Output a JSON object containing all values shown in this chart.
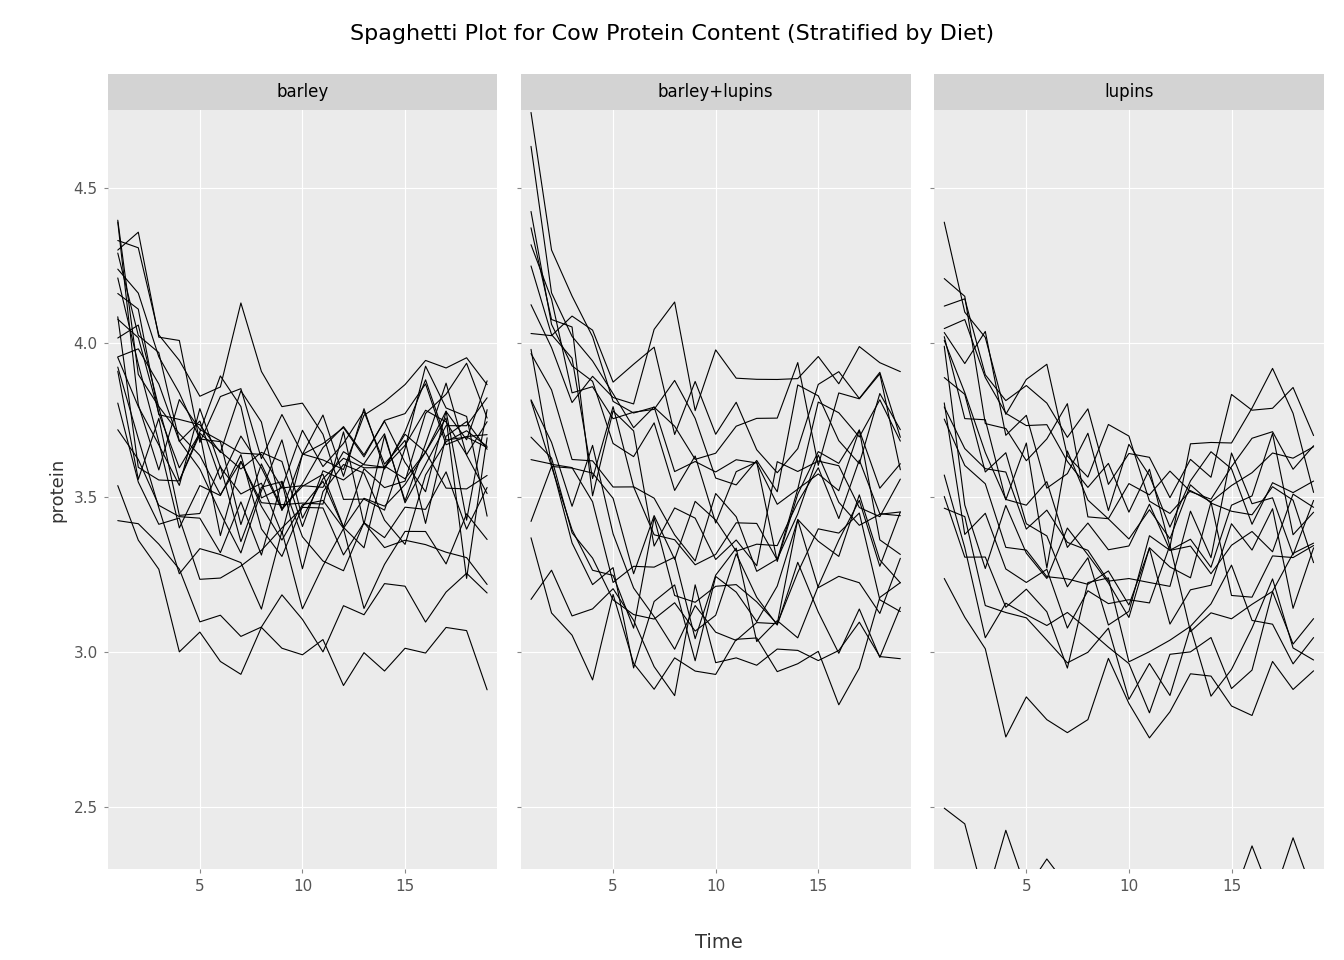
{
  "title": "Spaghetti Plot for Cow Protein Content (Stratified by Diet)",
  "xlabel": "Time",
  "ylabel": "protein",
  "diets": [
    "barley",
    "barley+lupins",
    "lupins"
  ],
  "ylim": [
    2.3,
    4.75
  ],
  "xlim": [
    0.5,
    19.5
  ],
  "xticks": [
    5,
    10,
    15
  ],
  "yticks": [
    2.5,
    3.0,
    3.5,
    4.0,
    4.5
  ],
  "bg_color": "#EBEBEB",
  "panel_bg": "#EBEBEB",
  "outer_bg": "white",
  "line_color": "black",
  "line_alpha": 1.0,
  "line_width": 0.8,
  "title_fontsize": 16,
  "label_fontsize": 13,
  "tick_fontsize": 11,
  "strip_fontsize": 12,
  "strip_bg": "#D3D3D3",
  "grid_color": "white",
  "barley_cows": [
    [
      4.28,
      4.32,
      3.96,
      3.79,
      3.85,
      3.88,
      3.97,
      3.83,
      3.84,
      3.75,
      3.75,
      3.54,
      3.47,
      3.65,
      3.83,
      3.98,
      3.89,
      3.73,
      3.53
    ],
    [
      4.44,
      4.21,
      4.04,
      4.0,
      3.82,
      3.88,
      3.84,
      3.74,
      3.73,
      3.7,
      3.65,
      3.65,
      3.58,
      3.81,
      3.97,
      3.86,
      4.04,
      3.93,
      4.06
    ],
    [
      4.37,
      4.14,
      3.88,
      3.82,
      3.7,
      3.71,
      3.56,
      3.68,
      3.51,
      3.43,
      3.54,
      3.58,
      3.56,
      3.57,
      3.62,
      3.71,
      3.73,
      3.84,
      3.84
    ],
    [
      4.32,
      3.99,
      3.87,
      3.73,
      3.61,
      3.56,
      3.44,
      3.44,
      3.55,
      3.44,
      3.46,
      3.59,
      3.66,
      3.56,
      3.55,
      3.65,
      3.6,
      3.5,
      3.61
    ],
    [
      4.2,
      3.96,
      3.67,
      3.6,
      3.56,
      3.47,
      3.49,
      3.45,
      3.39,
      3.52,
      3.46,
      3.37,
      3.39,
      3.55,
      3.55,
      3.55,
      3.6,
      3.56,
      3.61
    ],
    [
      4.1,
      3.95,
      3.84,
      3.68,
      3.77,
      3.7,
      3.74,
      3.63,
      3.54,
      3.56,
      3.62,
      3.54,
      3.62,
      3.72,
      3.62,
      3.71,
      3.78,
      3.68,
      3.63
    ],
    [
      3.94,
      3.66,
      3.47,
      3.37,
      3.22,
      3.24,
      3.21,
      3.23,
      3.25,
      3.28,
      3.22,
      3.18,
      3.24,
      3.34,
      3.38,
      3.44,
      3.44,
      3.44,
      3.47
    ],
    [
      3.86,
      3.65,
      3.6,
      3.52,
      3.48,
      3.52,
      3.48,
      3.51,
      3.42,
      3.43,
      3.5,
      3.58,
      3.5,
      3.55,
      3.48,
      3.52,
      3.65,
      3.69,
      3.63
    ],
    [
      4.02,
      3.77,
      3.64,
      3.61,
      3.6,
      3.55,
      3.63,
      3.48,
      3.48,
      3.56,
      3.65,
      3.65,
      3.69,
      3.55,
      3.63,
      3.69,
      3.71,
      3.77,
      3.75
    ],
    [
      3.8,
      3.63,
      3.44,
      3.41,
      3.35,
      3.32,
      3.34,
      3.34,
      3.28,
      3.31,
      3.38,
      3.37,
      3.37,
      3.36,
      3.29,
      3.3,
      3.33,
      3.39,
      3.37
    ],
    [
      4.12,
      3.93,
      3.75,
      3.72,
      3.69,
      3.61,
      3.68,
      3.63,
      3.61,
      3.52,
      3.55,
      3.5,
      3.5,
      3.6,
      3.62,
      3.7,
      3.68,
      3.68,
      3.77
    ],
    [
      4.01,
      3.84,
      3.68,
      3.61,
      3.57,
      3.54,
      3.54,
      3.56,
      3.5,
      3.53,
      3.47,
      3.48,
      3.6,
      3.63,
      3.65,
      3.72,
      3.76,
      3.63,
      3.62
    ],
    [
      4.23,
      4.04,
      3.84,
      3.73,
      3.73,
      3.71,
      3.63,
      3.68,
      3.66,
      3.62,
      3.74,
      3.64,
      3.71,
      3.76,
      3.72,
      3.78,
      3.79,
      3.73,
      3.75
    ],
    [
      4.08,
      3.88,
      3.75,
      3.68,
      3.62,
      3.68,
      3.69,
      3.65,
      3.58,
      3.59,
      3.67,
      3.63,
      3.7,
      3.7,
      3.69,
      3.74,
      3.8,
      3.77,
      3.78
    ],
    [
      3.92,
      3.74,
      3.6,
      3.54,
      3.56,
      3.52,
      3.5,
      3.47,
      3.46,
      3.43,
      3.47,
      3.46,
      3.49,
      3.51,
      3.53,
      3.58,
      3.62,
      3.55,
      3.57
    ],
    [
      3.62,
      3.43,
      3.29,
      3.24,
      3.16,
      3.14,
      3.1,
      3.14,
      3.1,
      3.07,
      3.07,
      3.06,
      3.09,
      3.14,
      3.15,
      3.18,
      3.25,
      3.18,
      3.13
    ],
    [
      3.54,
      3.35,
      3.14,
      3.06,
      3.01,
      2.99,
      2.95,
      2.97,
      2.93,
      2.91,
      2.91,
      2.89,
      2.93,
      2.97,
      2.98,
      3.01,
      3.07,
      3.01,
      2.96
    ],
    [
      4.18,
      3.9,
      3.71,
      3.7,
      3.64,
      3.62,
      3.58,
      3.64,
      3.62,
      3.53,
      3.6,
      3.55,
      3.62,
      3.68,
      3.7,
      3.74,
      3.8,
      3.72,
      3.72
    ],
    [
      3.78,
      3.6,
      3.46,
      3.41,
      3.38,
      3.38,
      3.35,
      3.35,
      3.37,
      3.32,
      3.38,
      3.33,
      3.42,
      3.47,
      3.47,
      3.49,
      3.55,
      3.48,
      3.48
    ]
  ],
  "barleylupins_cows": [
    [
      4.59,
      4.31,
      4.11,
      3.95,
      3.85,
      3.75,
      3.79,
      3.72,
      3.7,
      3.64,
      3.68,
      3.61,
      3.66,
      3.72,
      3.68,
      3.75,
      3.8,
      3.68,
      3.67
    ],
    [
      4.4,
      4.2,
      4.05,
      3.91,
      3.83,
      3.76,
      3.75,
      3.69,
      3.66,
      3.62,
      3.63,
      3.57,
      3.65,
      3.68,
      3.71,
      3.73,
      3.78,
      3.7,
      3.73
    ],
    [
      4.51,
      4.32,
      4.08,
      3.94,
      3.83,
      3.77,
      3.73,
      3.69,
      3.63,
      3.57,
      3.57,
      3.54,
      3.59,
      3.68,
      3.68,
      3.74,
      3.77,
      3.66,
      3.67
    ],
    [
      3.86,
      3.6,
      3.39,
      3.31,
      3.25,
      3.18,
      3.21,
      3.17,
      3.14,
      3.18,
      3.23,
      3.21,
      3.22,
      3.25,
      3.24,
      3.29,
      3.34,
      3.27,
      3.29
    ],
    [
      3.95,
      3.77,
      3.6,
      3.54,
      3.5,
      3.46,
      3.45,
      3.43,
      3.42,
      3.39,
      3.42,
      3.4,
      3.45,
      3.49,
      3.5,
      3.53,
      3.57,
      3.5,
      3.52
    ],
    [
      3.38,
      3.23,
      3.11,
      3.03,
      2.99,
      2.96,
      2.95,
      2.96,
      2.95,
      2.95,
      2.98,
      2.97,
      2.99,
      3.02,
      3.03,
      3.06,
      3.1,
      3.04,
      3.06
    ],
    [
      3.84,
      3.62,
      3.44,
      3.36,
      3.27,
      3.22,
      3.21,
      3.17,
      3.13,
      3.14,
      3.18,
      3.16,
      3.2,
      3.26,
      3.27,
      3.31,
      3.36,
      3.29,
      3.31
    ],
    [
      3.97,
      3.93,
      3.91,
      3.91,
      3.91,
      3.94,
      3.95,
      3.94,
      3.92,
      3.92,
      3.95,
      3.93,
      3.94,
      3.97,
      3.95,
      3.95,
      3.96,
      3.94,
      3.93
    ],
    [
      4.12,
      4.08,
      4.01,
      3.99,
      3.97,
      3.92,
      3.91,
      3.87,
      3.82,
      3.77,
      3.75,
      3.73,
      3.76,
      3.82,
      3.86,
      3.88,
      3.91,
      3.84,
      3.86
    ],
    [
      4.43,
      4.18,
      3.99,
      3.87,
      3.76,
      3.67,
      3.64,
      3.58,
      3.55,
      3.53,
      3.53,
      3.47,
      3.54,
      3.59,
      3.59,
      3.63,
      3.68,
      3.59,
      3.6
    ],
    [
      3.71,
      3.51,
      3.36,
      3.27,
      3.21,
      3.17,
      3.15,
      3.12,
      3.11,
      3.09,
      3.11,
      3.09,
      3.12,
      3.17,
      3.17,
      3.2,
      3.24,
      3.17,
      3.18
    ],
    [
      3.62,
      3.44,
      3.32,
      3.24,
      3.19,
      3.17,
      3.14,
      3.14,
      3.12,
      3.13,
      3.16,
      3.14,
      3.15,
      3.2,
      3.19,
      3.22,
      3.27,
      3.21,
      3.22
    ],
    [
      4.05,
      3.84,
      3.67,
      3.57,
      3.5,
      3.43,
      3.43,
      3.39,
      3.38,
      3.36,
      3.38,
      3.34,
      3.39,
      3.44,
      3.44,
      3.48,
      3.53,
      3.44,
      3.44
    ],
    [
      3.6,
      3.45,
      3.33,
      3.27,
      3.22,
      3.19,
      3.19,
      3.17,
      3.15,
      3.14,
      3.17,
      3.14,
      3.17,
      3.21,
      3.21,
      3.25,
      3.29,
      3.22,
      3.23
    ],
    [
      4.26,
      4.02,
      3.84,
      3.73,
      3.64,
      3.55,
      3.54,
      3.48,
      3.46,
      3.43,
      3.43,
      3.39,
      3.43,
      3.48,
      3.47,
      3.51,
      3.56,
      3.47,
      3.48
    ],
    [
      3.44,
      3.27,
      3.14,
      3.07,
      3.02,
      2.99,
      2.98,
      2.97,
      2.96,
      2.96,
      2.98,
      2.96,
      2.99,
      3.02,
      3.03,
      3.06,
      3.1,
      3.04,
      3.05
    ],
    [
      4.36,
      4.1,
      3.9,
      3.77,
      3.67,
      3.59,
      3.55,
      3.5,
      3.47,
      3.44,
      3.44,
      3.39,
      3.44,
      3.49,
      3.49,
      3.53,
      3.58,
      3.49,
      3.51
    ]
  ],
  "lupins_cows": [
    [
      4.24,
      4.07,
      3.92,
      3.85,
      3.79,
      3.76,
      3.73,
      3.67,
      3.65,
      3.58,
      3.57,
      3.53,
      3.59,
      3.69,
      3.74,
      3.8,
      3.84,
      3.75,
      3.77
    ],
    [
      4.16,
      3.91,
      3.69,
      3.62,
      3.5,
      3.48,
      3.48,
      3.47,
      3.44,
      3.42,
      3.42,
      3.37,
      3.43,
      3.47,
      3.44,
      3.48,
      3.54,
      3.46,
      3.46
    ],
    [
      4.18,
      4.0,
      3.87,
      3.79,
      3.73,
      3.7,
      3.67,
      3.61,
      3.59,
      3.55,
      3.55,
      3.51,
      3.57,
      3.63,
      3.65,
      3.69,
      3.75,
      3.67,
      3.7
    ],
    [
      3.92,
      3.72,
      3.59,
      3.53,
      3.47,
      3.44,
      3.43,
      3.39,
      3.37,
      3.33,
      3.36,
      3.31,
      3.35,
      3.4,
      3.38,
      3.43,
      3.48,
      3.4,
      3.42
    ],
    [
      4.09,
      3.92,
      3.78,
      3.71,
      3.65,
      3.6,
      3.58,
      3.53,
      3.52,
      3.49,
      3.5,
      3.46,
      3.49,
      3.55,
      3.53,
      3.57,
      3.62,
      3.54,
      3.56
    ],
    [
      3.51,
      3.32,
      3.18,
      3.12,
      3.06,
      3.03,
      3.02,
      2.99,
      2.97,
      2.97,
      2.97,
      2.95,
      2.98,
      3.02,
      3.01,
      3.05,
      3.09,
      3.03,
      3.04
    ],
    [
      3.75,
      3.6,
      3.45,
      3.39,
      3.32,
      3.29,
      3.28,
      3.25,
      3.24,
      3.2,
      3.21,
      3.18,
      3.22,
      3.26,
      3.27,
      3.31,
      3.36,
      3.29,
      3.31
    ],
    [
      4.3,
      4.09,
      3.91,
      3.82,
      3.74,
      3.7,
      3.67,
      3.61,
      3.59,
      3.54,
      3.54,
      3.49,
      3.55,
      3.62,
      3.63,
      3.68,
      3.72,
      3.63,
      3.64
    ],
    [
      3.65,
      3.48,
      3.35,
      3.29,
      3.23,
      3.2,
      3.19,
      3.16,
      3.14,
      3.12,
      3.13,
      3.1,
      3.13,
      3.18,
      3.17,
      3.21,
      3.26,
      3.2,
      3.21
    ],
    [
      3.56,
      3.39,
      3.26,
      3.2,
      3.14,
      3.11,
      3.1,
      3.07,
      3.06,
      3.03,
      3.04,
      3.01,
      3.05,
      3.09,
      3.08,
      3.12,
      3.17,
      3.1,
      3.12
    ],
    [
      4.21,
      3.97,
      3.79,
      3.7,
      3.62,
      3.57,
      3.55,
      3.49,
      3.48,
      3.44,
      3.44,
      3.4,
      3.46,
      3.53,
      3.54,
      3.58,
      3.63,
      3.54,
      3.56
    ],
    [
      3.89,
      3.7,
      3.58,
      3.51,
      3.46,
      3.43,
      3.42,
      3.38,
      3.37,
      3.34,
      3.35,
      3.31,
      3.36,
      3.41,
      3.4,
      3.44,
      3.49,
      3.41,
      3.43
    ],
    [
      3.44,
      3.28,
      3.16,
      3.1,
      3.05,
      3.02,
      3.01,
      2.98,
      2.97,
      2.95,
      2.95,
      2.93,
      2.96,
      3.01,
      3.0,
      3.04,
      3.08,
      3.02,
      3.03
    ],
    [
      3.8,
      3.62,
      3.49,
      3.43,
      3.37,
      3.34,
      3.33,
      3.29,
      3.28,
      3.24,
      3.25,
      3.21,
      3.25,
      3.3,
      3.29,
      3.33,
      3.38,
      3.31,
      3.32
    ],
    [
      2.52,
      2.41,
      2.32,
      2.28,
      2.24,
      2.22,
      2.21,
      2.19,
      2.18,
      2.17,
      2.17,
      2.15,
      2.18,
      2.21,
      2.2,
      2.23,
      2.27,
      2.22,
      2.22
    ],
    [
      4.03,
      3.82,
      3.65,
      3.56,
      3.48,
      3.42,
      3.4,
      3.35,
      3.33,
      3.29,
      3.3,
      3.25,
      3.3,
      3.35,
      3.35,
      3.39,
      3.44,
      3.36,
      3.38
    ],
    [
      3.26,
      3.11,
      2.99,
      2.93,
      2.88,
      2.85,
      2.84,
      2.81,
      2.8,
      2.77,
      2.78,
      2.75,
      2.79,
      2.83,
      2.82,
      2.86,
      2.9,
      2.84,
      2.85
    ]
  ]
}
